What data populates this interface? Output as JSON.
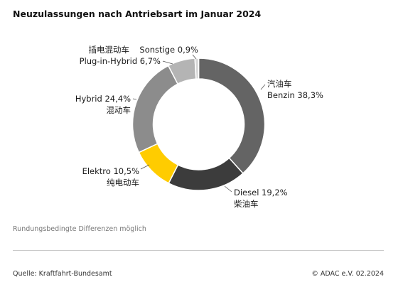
{
  "title": "Neuzulassungen nach Antriebsart im Januar 2024",
  "note": "Rundungsbedingte Differenzen möglich",
  "source": "Quelle: Kraftfahrt-Bundesamt",
  "copyright": "© ADAC e.V. 02.2024",
  "chart_data": {
    "type": "pie",
    "variant": "donut",
    "title": "Neuzulassungen nach Antriebsart im Januar 2024",
    "slices": [
      {
        "label": "Benzin",
        "label_cn": "汽油车",
        "value": 38.3,
        "display": "38,3%",
        "color": "#646464"
      },
      {
        "label": "Diesel",
        "label_cn": "柴油车",
        "value": 19.2,
        "display": "19,2%",
        "color": "#3c3c3c"
      },
      {
        "label": "Elektro",
        "label_cn": "纯电动车",
        "value": 10.5,
        "display": "10,5%",
        "color": "#ffcc00"
      },
      {
        "label": "Hybrid",
        "label_cn": "混动车",
        "value": 24.4,
        "display": "24,4%",
        "color": "#8c8c8c"
      },
      {
        "label": "Plug-in-Hybrid",
        "label_cn": "插电混动车",
        "value": 6.7,
        "display": "6,7%",
        "color": "#b4b4b4"
      },
      {
        "label": "Sonstige",
        "label_cn": "",
        "value": 0.9,
        "display": "0,9%",
        "color": "#d7d7d7"
      }
    ]
  }
}
